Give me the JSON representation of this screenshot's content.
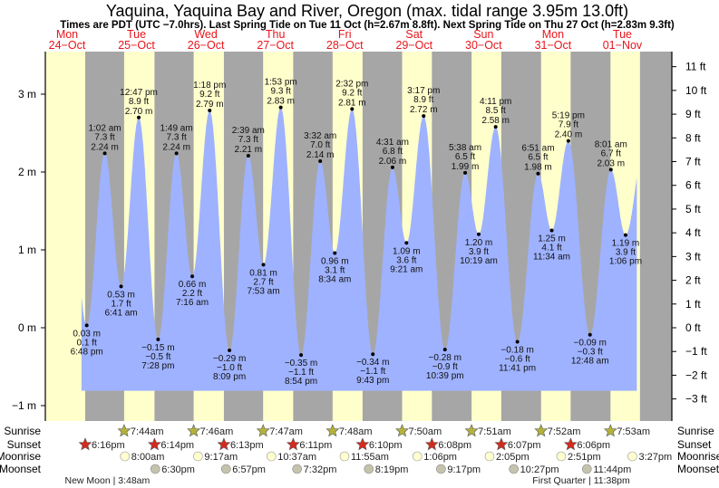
{
  "chart_data": {
    "type": "area",
    "title": "Yaquina, Yaquina Bay and River, Oregon (max. tidal range 3.95m 13.0ft)",
    "subtitle": "Times are PDT (UTC −7.0hrs). Last Spring Tide on Tue 11 Oct (h=2.67m 8.8ft). Next Spring Tide on Thu 27 Oct (h=2.83m 9.3ft)",
    "days": [
      {
        "name": "Mon",
        "date": "24−Oct"
      },
      {
        "name": "Tue",
        "date": "25−Oct"
      },
      {
        "name": "Wed",
        "date": "26−Oct"
      },
      {
        "name": "Thu",
        "date": "27−Oct"
      },
      {
        "name": "Fri",
        "date": "28−Oct"
      },
      {
        "name": "Sat",
        "date": "29−Oct"
      },
      {
        "name": "Sun",
        "date": "30−Oct"
      },
      {
        "name": "Mon",
        "date": "31−Oct"
      },
      {
        "name": "Tue",
        "date": "01−Nov"
      }
    ],
    "x_unit": "hours since Mon 24-Oct 00:00 PDT",
    "xlim": [
      4.5,
      221
    ],
    "ylim_m": [
      -1.2,
      3.55
    ],
    "y_ticks_m": [
      "3 m",
      "2 m",
      "1 m",
      "0 m",
      "−1 m"
    ],
    "y_ticks_m_values": [
      3,
      2,
      1,
      0,
      -1
    ],
    "y_ticks_ft": [
      "11 ft",
      "10 ft",
      "9 ft",
      "8 ft",
      "7 ft",
      "6 ft",
      "5 ft",
      "4 ft",
      "3 ft",
      "2 ft",
      "1 ft",
      "0 ft",
      "−1 ft",
      "−2 ft",
      "−3 ft"
    ],
    "y_ticks_ft_values": [
      11,
      10,
      9,
      8,
      7,
      6,
      5,
      4,
      3,
      2,
      1,
      0,
      -1,
      -2,
      -3
    ],
    "tides": [
      {
        "type": "low",
        "hour": 18.8,
        "m": 0.03,
        "m_label": "0.03 m",
        "ft_label": "0.1 ft",
        "time": "6:48 pm"
      },
      {
        "type": "high",
        "hour": 25.03,
        "m": 2.24,
        "m_label": "2.24 m",
        "ft_label": "7.3 ft",
        "time": "1:02 am"
      },
      {
        "type": "low",
        "hour": 30.68,
        "m": 0.53,
        "m_label": "0.53 m",
        "ft_label": "1.7 ft",
        "time": "6:41 am"
      },
      {
        "type": "high",
        "hour": 36.78,
        "m": 2.7,
        "m_label": "2.70 m",
        "ft_label": "8.9 ft",
        "time": "12:47 pm"
      },
      {
        "type": "low",
        "hour": 43.47,
        "m": -0.15,
        "m_label": "−0.15 m",
        "ft_label": "−0.5 ft",
        "time": "7:28 pm"
      },
      {
        "type": "high",
        "hour": 49.82,
        "m": 2.24,
        "m_label": "2.24 m",
        "ft_label": "7.3 ft",
        "time": "1:49 am"
      },
      {
        "type": "low",
        "hour": 55.27,
        "m": 0.66,
        "m_label": "0.66 m",
        "ft_label": "2.2 ft",
        "time": "7:16 am"
      },
      {
        "type": "high",
        "hour": 61.3,
        "m": 2.79,
        "m_label": "2.79 m",
        "ft_label": "9.2 ft",
        "time": "1:18 pm"
      },
      {
        "type": "low",
        "hour": 68.15,
        "m": -0.29,
        "m_label": "−0.29 m",
        "ft_label": "−1.0 ft",
        "time": "8:09 pm"
      },
      {
        "type": "high",
        "hour": 74.65,
        "m": 2.21,
        "m_label": "2.21 m",
        "ft_label": "7.3 ft",
        "time": "2:39 am"
      },
      {
        "type": "low",
        "hour": 79.88,
        "m": 0.81,
        "m_label": "0.81 m",
        "ft_label": "2.7 ft",
        "time": "7:53 am"
      },
      {
        "type": "high",
        "hour": 85.88,
        "m": 2.83,
        "m_label": "2.83 m",
        "ft_label": "9.3 ft",
        "time": "1:53 pm"
      },
      {
        "type": "low",
        "hour": 92.9,
        "m": -0.35,
        "m_label": "−0.35 m",
        "ft_label": "−1.1 ft",
        "time": "8:54 pm"
      },
      {
        "type": "high",
        "hour": 99.53,
        "m": 2.14,
        "m_label": "2.14 m",
        "ft_label": "7.0 ft",
        "time": "3:32 am"
      },
      {
        "type": "low",
        "hour": 104.57,
        "m": 0.96,
        "m_label": "0.96 m",
        "ft_label": "3.1 ft",
        "time": "8:34 am"
      },
      {
        "type": "high",
        "hour": 110.53,
        "m": 2.81,
        "m_label": "2.81 m",
        "ft_label": "9.2 ft",
        "time": "2:32 pm"
      },
      {
        "type": "low",
        "hour": 117.72,
        "m": -0.34,
        "m_label": "−0.34 m",
        "ft_label": "−1.1 ft",
        "time": "9:43 pm"
      },
      {
        "type": "high",
        "hour": 124.52,
        "m": 2.06,
        "m_label": "2.06 m",
        "ft_label": "6.8 ft",
        "time": "4:31 am"
      },
      {
        "type": "low",
        "hour": 129.35,
        "m": 1.09,
        "m_label": "1.09 m",
        "ft_label": "3.6 ft",
        "time": "9:21 am"
      },
      {
        "type": "high",
        "hour": 135.28,
        "m": 2.72,
        "m_label": "2.72 m",
        "ft_label": "8.9 ft",
        "time": "3:17 pm"
      },
      {
        "type": "low",
        "hour": 142.65,
        "m": -0.28,
        "m_label": "−0.28 m",
        "ft_label": "−0.9 ft",
        "time": "10:39 pm"
      },
      {
        "type": "high",
        "hour": 149.63,
        "m": 1.99,
        "m_label": "1.99 m",
        "ft_label": "6.5 ft",
        "time": "5:38 am"
      },
      {
        "type": "low",
        "hour": 154.32,
        "m": 1.2,
        "m_label": "1.20 m",
        "ft_label": "3.9 ft",
        "time": "10:19 am"
      },
      {
        "type": "high",
        "hour": 160.18,
        "m": 2.58,
        "m_label": "2.58 m",
        "ft_label": "8.5 ft",
        "time": "4:11 pm"
      },
      {
        "type": "low",
        "hour": 167.68,
        "m": -0.18,
        "m_label": "−0.18 m",
        "ft_label": "−0.6 ft",
        "time": "11:41 pm"
      },
      {
        "type": "high",
        "hour": 174.85,
        "m": 1.98,
        "m_label": "1.98 m",
        "ft_label": "6.5 ft",
        "time": "6:51 am"
      },
      {
        "type": "low",
        "hour": 179.57,
        "m": 1.25,
        "m_label": "1.25 m",
        "ft_label": "4.1 ft",
        "time": "11:34 am"
      },
      {
        "type": "high",
        "hour": 185.32,
        "m": 2.4,
        "m_label": "2.40 m",
        "ft_label": "7.9 ft",
        "time": "5:19 pm"
      },
      {
        "type": "low",
        "hour": 192.8,
        "m": -0.09,
        "m_label": "−0.09 m",
        "ft_label": "−0.3 ft",
        "time": "12:48 am"
      },
      {
        "type": "high",
        "hour": 200.02,
        "m": 2.03,
        "m_label": "2.03 m",
        "ft_label": "6.7 ft",
        "time": "8:01 am"
      },
      {
        "type": "low",
        "hour": 205.1,
        "m": 1.19,
        "m_label": "1.19 m",
        "ft_label": "3.9 ft",
        "time": "1:06 pm"
      }
    ],
    "rows": {
      "labels": {
        "sunrise": "Sunrise",
        "sunset": "Sunset",
        "moonrise": "Moonrise",
        "moonset": "Moonset"
      },
      "sunrise": [
        {
          "hour": 31.73,
          "time": "7:44am"
        },
        {
          "hour": 55.77,
          "time": "7:46am"
        },
        {
          "hour": 79.78,
          "time": "7:47am"
        },
        {
          "hour": 103.8,
          "time": "7:48am"
        },
        {
          "hour": 127.83,
          "time": "7:50am"
        },
        {
          "hour": 151.85,
          "time": "7:51am"
        },
        {
          "hour": 175.87,
          "time": "7:52am"
        },
        {
          "hour": 199.88,
          "time": "7:53am"
        }
      ],
      "sunset": [
        {
          "hour": 18.27,
          "time": "6:16pm"
        },
        {
          "hour": 42.23,
          "time": "6:14pm"
        },
        {
          "hour": 66.22,
          "time": "6:13pm"
        },
        {
          "hour": 90.18,
          "time": "6:11pm"
        },
        {
          "hour": 114.17,
          "time": "6:10pm"
        },
        {
          "hour": 138.13,
          "time": "6:08pm"
        },
        {
          "hour": 162.12,
          "time": "6:07pm"
        },
        {
          "hour": 186.1,
          "time": "6:06pm"
        }
      ],
      "moonrise": [
        {
          "hour": 32.0,
          "time": "8:00am"
        },
        {
          "hour": 57.28,
          "time": "9:17am"
        },
        {
          "hour": 82.62,
          "time": "10:37am"
        },
        {
          "hour": 107.92,
          "time": "11:55am"
        },
        {
          "hour": 133.1,
          "time": "1:06pm"
        },
        {
          "hour": 158.08,
          "time": "2:05pm"
        },
        {
          "hour": 182.85,
          "time": "2:51pm"
        },
        {
          "hour": 207.45,
          "time": "3:27pm"
        }
      ],
      "moonset": [
        {
          "hour": 42.5,
          "time": "6:30pm"
        },
        {
          "hour": 66.95,
          "time": "6:57pm"
        },
        {
          "hour": 91.53,
          "time": "7:32pm"
        },
        {
          "hour": 116.32,
          "time": "8:19pm"
        },
        {
          "hour": 141.28,
          "time": "9:17pm"
        },
        {
          "hour": 166.45,
          "time": "10:27pm"
        },
        {
          "hour": 191.73,
          "time": "11:44pm"
        }
      ],
      "phases": [
        {
          "hour": 27.8,
          "label": "New Moon | 3:48am"
        },
        {
          "hour": 191.63,
          "label": "First Quarter | 11:38pm"
        }
      ]
    },
    "colors": {
      "day": "#ffffcc",
      "night": "#a6a6a6",
      "water": "#9fb2ff",
      "sunrise": "#b5b23c",
      "sunset": "#d42a1e",
      "moonrise": "#ffffd0",
      "moonset": "#c6c3ad",
      "day_label": "#e8151b"
    }
  }
}
